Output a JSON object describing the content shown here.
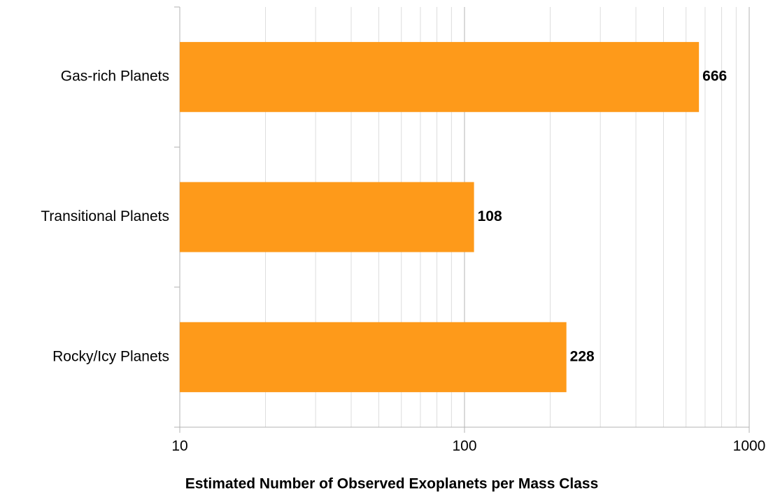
{
  "chart_data": {
    "type": "bar",
    "orientation": "horizontal",
    "x_label": "Estimated Number of Observed Exoplanets per Mass Class",
    "categories": [
      "Gas-rich Planets",
      "Transitional Planets",
      "Rocky/Icy Planets"
    ],
    "values": [
      666,
      108,
      228
    ],
    "color": "#fe9a1a",
    "xscale": "log",
    "xlim": [
      10,
      1000
    ],
    "xticks": [
      10,
      100,
      1000
    ],
    "grid": true,
    "minor_grid": true
  }
}
